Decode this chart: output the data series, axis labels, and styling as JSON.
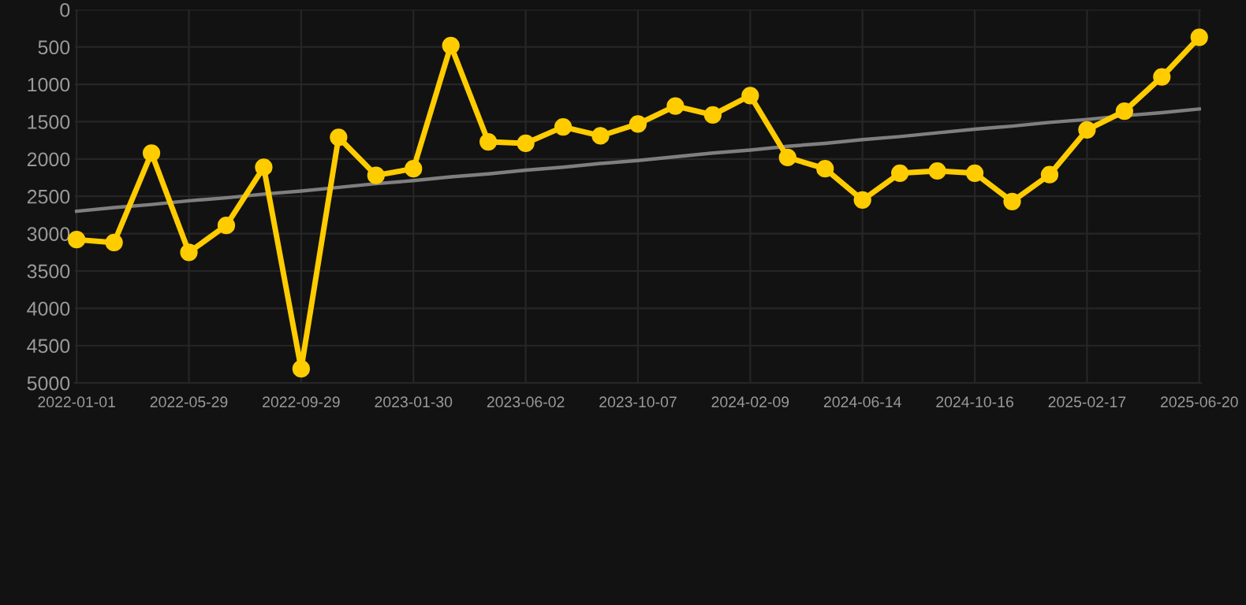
{
  "chart_data": {
    "type": "line",
    "categories": [
      "2022-01-01",
      null,
      null,
      "2022-05-29",
      null,
      null,
      "2022-09-29",
      null,
      null,
      "2023-01-30",
      null,
      null,
      "2023-06-02",
      null,
      null,
      "2023-10-07",
      null,
      null,
      "2024-02-09",
      null,
      null,
      "2024-06-14",
      null,
      null,
      "2024-10-16",
      null,
      null,
      "2025-02-17",
      null,
      null,
      "2025-06-20"
    ],
    "series": [
      {
        "color": "#ffcc00",
        "marker": "circle",
        "values": [
          3080,
          3120,
          1920,
          3250,
          2890,
          2110,
          4810,
          1710,
          2220,
          2130,
          480,
          1770,
          1790,
          1570,
          1690,
          1530,
          1290,
          1410,
          1150,
          1980,
          2130,
          2550,
          2190,
          2160,
          2190,
          2570,
          2210,
          1610,
          1360,
          900,
          370
        ]
      },
      {
        "color": "#7f7f7f",
        "marker": "none",
        "values": [
          2700,
          2650,
          2610,
          2560,
          2520,
          2470,
          2430,
          2380,
          2330,
          2290,
          2240,
          2200,
          2150,
          2110,
          2060,
          2020,
          1970,
          1920,
          1880,
          1830,
          1790,
          1740,
          1700,
          1650,
          1600,
          1560,
          1510,
          1470,
          1420,
          1380,
          1330
        ]
      }
    ],
    "ylim": [
      5000,
      0
    ],
    "yticks": [
      0,
      500,
      1000,
      1500,
      2000,
      2500,
      3000,
      3500,
      4000,
      4500,
      5000
    ],
    "grid": true,
    "legend": false
  }
}
